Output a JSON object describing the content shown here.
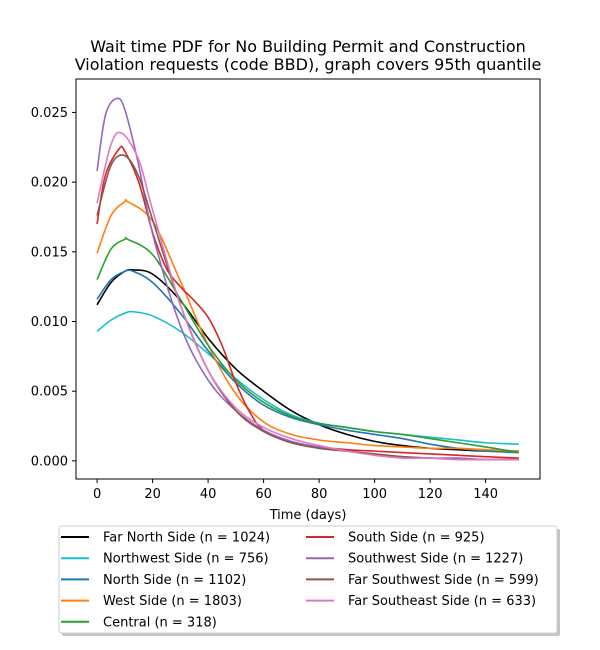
{
  "chart_data": {
    "type": "line",
    "title_line1": "Wait time PDF for No Building Permit and Construction",
    "title_line2": "Violation  requests (code BBD), graph covers 95th quantile",
    "xlabel": "Time (days)",
    "ylabel": "",
    "xlim": [
      -7.6,
      159.6
    ],
    "ylim": [
      -0.0013,
      0.0274
    ],
    "xticks": [
      0,
      20,
      40,
      60,
      80,
      100,
      120,
      140
    ],
    "yticks": [
      0.0,
      0.005,
      0.01,
      0.015,
      0.02,
      0.025
    ],
    "ytick_labels": [
      "0.000",
      "0.005",
      "0.010",
      "0.015",
      "0.020",
      "0.025"
    ],
    "legend_position": "below plot, two columns",
    "series": [
      {
        "name": "Far North Side (n = 1024)",
        "color": "#000000",
        "x": [
          0,
          5,
          10,
          13,
          20,
          30,
          40,
          50,
          60,
          70,
          80,
          90,
          100,
          110,
          120,
          130,
          140,
          152
        ],
        "y": [
          0.0112,
          0.0128,
          0.0136,
          0.0137,
          0.0134,
          0.0115,
          0.0088,
          0.0066,
          0.005,
          0.0036,
          0.0026,
          0.0019,
          0.0014,
          0.0011,
          0.0009,
          0.0008,
          0.0007,
          0.0007
        ]
      },
      {
        "name": "Northwest Side (n = 756)",
        "color": "#17becf",
        "x": [
          0,
          5,
          10,
          13,
          20,
          30,
          40,
          50,
          60,
          70,
          80,
          90,
          100,
          110,
          120,
          130,
          140,
          152
        ],
        "y": [
          0.0093,
          0.0101,
          0.0106,
          0.0107,
          0.0104,
          0.0093,
          0.0077,
          0.0059,
          0.0044,
          0.0033,
          0.0027,
          0.0024,
          0.0021,
          0.0019,
          0.0017,
          0.0015,
          0.0013,
          0.0012
        ]
      },
      {
        "name": "North Side (n = 1102)",
        "color": "#1f77b4",
        "x": [
          0,
          5,
          10,
          13,
          20,
          30,
          40,
          50,
          60,
          70,
          80,
          90,
          100,
          110,
          120,
          130,
          140,
          152
        ],
        "y": [
          0.0116,
          0.013,
          0.0136,
          0.0136,
          0.0128,
          0.0106,
          0.0079,
          0.0056,
          0.004,
          0.0031,
          0.0026,
          0.0022,
          0.0019,
          0.0016,
          0.0012,
          0.0009,
          0.0007,
          0.0006
        ]
      },
      {
        "name": "West Side (n = 1803)",
        "color": "#ff7f0e",
        "x": [
          0,
          5,
          10,
          11,
          20,
          30,
          40,
          50,
          60,
          70,
          80,
          90,
          100,
          110,
          120,
          130,
          140,
          152
        ],
        "y": [
          0.0149,
          0.0176,
          0.0186,
          0.0186,
          0.0172,
          0.0129,
          0.0083,
          0.0048,
          0.0028,
          0.0019,
          0.0015,
          0.0013,
          0.0011,
          0.001,
          0.0009,
          0.0009,
          0.0008,
          0.0007
        ]
      },
      {
        "name": "Central (n = 318)",
        "color": "#2ca02c",
        "x": [
          0,
          5,
          10,
          11,
          20,
          30,
          40,
          50,
          60,
          70,
          80,
          90,
          100,
          110,
          120,
          130,
          140,
          152
        ],
        "y": [
          0.013,
          0.0152,
          0.0159,
          0.0159,
          0.0148,
          0.0116,
          0.0083,
          0.0058,
          0.0042,
          0.0032,
          0.0027,
          0.0024,
          0.0021,
          0.0019,
          0.0016,
          0.0013,
          0.001,
          0.0006
        ]
      },
      {
        "name": "South Side (n = 925)",
        "color": "#d62728",
        "x": [
          0,
          3,
          8,
          10,
          15,
          20,
          25,
          30,
          35,
          40,
          45,
          50,
          55,
          60,
          70,
          80,
          90,
          100,
          110,
          120,
          130,
          140,
          152
        ],
        "y": [
          0.017,
          0.0205,
          0.0224,
          0.0222,
          0.02,
          0.0164,
          0.0138,
          0.0125,
          0.0115,
          0.0103,
          0.0083,
          0.0056,
          0.0035,
          0.0022,
          0.0013,
          0.001,
          0.0008,
          0.0007,
          0.0006,
          0.0005,
          0.0004,
          0.0003,
          0.0002
        ]
      },
      {
        "name": "Southwest Side (n = 1227)",
        "color": "#9467bd",
        "x": [
          0,
          3,
          7,
          10,
          15,
          20,
          30,
          40,
          50,
          60,
          70,
          80,
          90,
          100,
          110,
          120,
          130,
          140,
          152
        ],
        "y": [
          0.0208,
          0.0248,
          0.026,
          0.0252,
          0.0212,
          0.0163,
          0.0097,
          0.0058,
          0.0036,
          0.0022,
          0.0014,
          0.001,
          0.0007,
          0.0005,
          0.0003,
          0.0002,
          0.0002,
          0.0001,
          0.0001
        ]
      },
      {
        "name": "Far Southwest Side (n = 599)",
        "color": "#8c564b",
        "x": [
          0,
          5,
          10,
          15,
          20,
          30,
          40,
          50,
          60,
          70,
          80,
          90,
          100,
          110,
          120,
          130,
          140,
          152
        ],
        "y": [
          0.0176,
          0.0212,
          0.0219,
          0.0204,
          0.0173,
          0.0112,
          0.0065,
          0.0036,
          0.0021,
          0.0013,
          0.0009,
          0.0007,
          0.0005,
          0.0003,
          0.0002,
          0.0001,
          0.0001,
          0.0001
        ]
      },
      {
        "name": "Far Southeast Side (n = 633)",
        "color": "#e377c2",
        "x": [
          0,
          5,
          9,
          15,
          20,
          30,
          40,
          50,
          60,
          70,
          80,
          90,
          100,
          110,
          120,
          130,
          140,
          152
        ],
        "y": [
          0.0185,
          0.0227,
          0.0235,
          0.0216,
          0.018,
          0.0112,
          0.0065,
          0.0038,
          0.0024,
          0.0016,
          0.0011,
          0.0007,
          0.0004,
          0.0002,
          0.0002,
          0.0001,
          0.0001,
          0.0001
        ]
      }
    ]
  }
}
